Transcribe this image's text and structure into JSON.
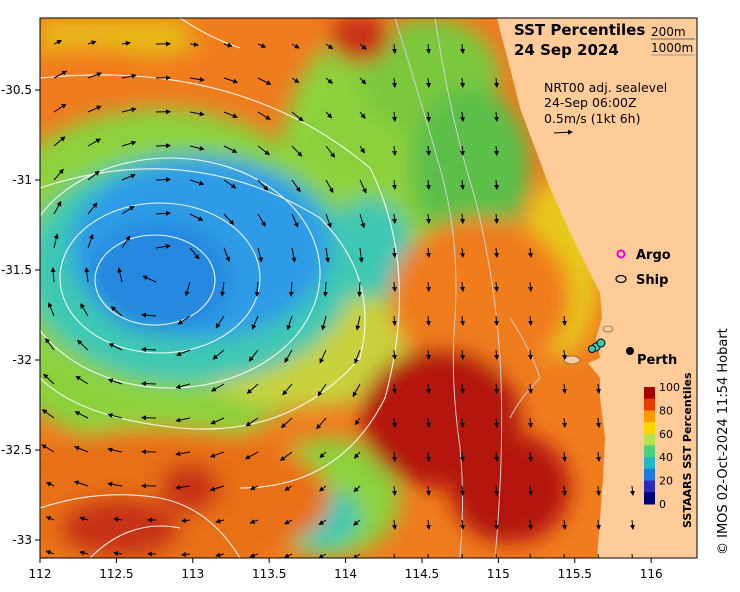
{
  "title": {
    "line1": "SST Percentiles",
    "line2": "24 Sep 2024"
  },
  "contour_legend": [
    "200m",
    "1000m"
  ],
  "current_info": {
    "line1": "NRT00 adj. sealevel",
    "line2": "24-Sep 06:00Z",
    "line3": "0.5m/s (1kt 6h)"
  },
  "markers": {
    "argo_label": "Argo",
    "ship_label": "Ship",
    "city_label": "Perth"
  },
  "axes": {
    "x_ticks": [
      "112",
      "112.5",
      "113",
      "113.5",
      "114",
      "114.5",
      "115",
      "115.5",
      "116"
    ],
    "x_values": [
      112,
      112.5,
      113,
      113.5,
      114,
      114.5,
      115,
      115.5,
      116
    ],
    "y_ticks": [
      "-30.5",
      "-31",
      "-31.5",
      "-32",
      "-32.5",
      "-33"
    ],
    "y_values": [
      -30.5,
      -31,
      -31.5,
      -32,
      -32.5,
      -33
    ],
    "lon_range": [
      112,
      116.3
    ],
    "lat_range": [
      -30.1,
      -33.1
    ]
  },
  "colorbar": {
    "label": "SSTAARS SST Percentiles",
    "ticks": [
      "100",
      "80",
      "60",
      "40",
      "20",
      "0"
    ],
    "colors": [
      "#a50000",
      "#e63c00",
      "#ff9a00",
      "#ffd700",
      "#b6e14a",
      "#4cd17f",
      "#1fb8c8",
      "#1f78e6",
      "#2a2ab8",
      "#00007a"
    ]
  },
  "credit": "© IMOS 02-Oct-2024 11:54 Hobart",
  "colors": {
    "land": "#ffcc99",
    "hot": "#aa0f0f",
    "orange": "#f07c1e",
    "yellow": "#e8c81e",
    "green": "#7cc83c",
    "cyan": "#3cc8b4",
    "blue": "#2d96e6"
  }
}
